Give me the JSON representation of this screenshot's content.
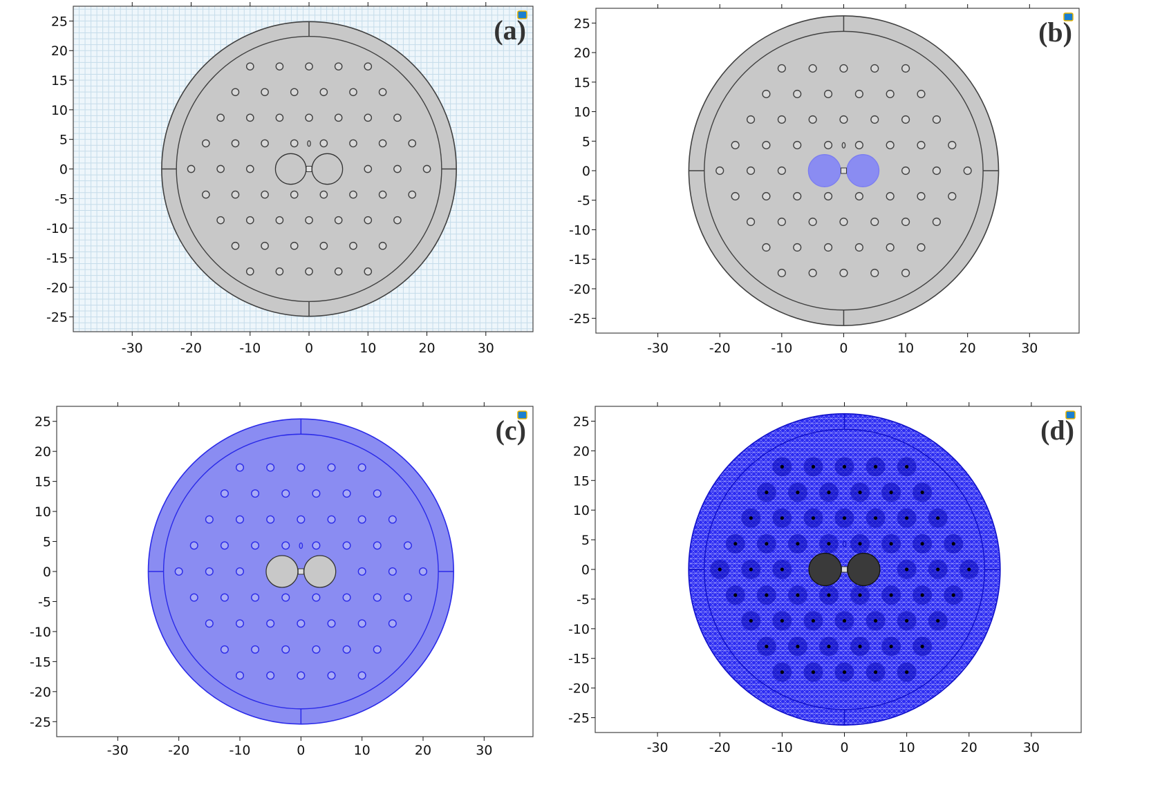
{
  "panels": [
    {
      "id": "a",
      "label": "(a)",
      "fill": "#c8c8c8",
      "edge": "#404040",
      "background": "#eef6fb",
      "grid": true,
      "core_fill": "none",
      "mesh": false
    },
    {
      "id": "b",
      "label": "(b)",
      "fill": "#c8c8c8",
      "edge": "#404040",
      "background": "#ffffff",
      "grid": false,
      "core_fill": "#8a8cf2",
      "mesh": false
    },
    {
      "id": "c",
      "label": "(c)",
      "fill": "#8a8cf2",
      "edge": "#2a2ae8",
      "background": "#ffffff",
      "grid": false,
      "core_fill": "#c8c8c8",
      "mesh": false
    },
    {
      "id": "d",
      "label": "(d)",
      "fill": "#2828f0",
      "edge": "#1010c8",
      "background": "#ffffff",
      "grid": false,
      "core_fill": "#3a3a3a",
      "mesh": true
    }
  ],
  "x_ticks": [
    "-30",
    "-20",
    "-10",
    "0",
    "10",
    "20",
    "30"
  ],
  "y_ticks": [
    "25",
    "20",
    "15",
    "10",
    "5",
    "0",
    "-5",
    "-10",
    "-15",
    "-20",
    "-25"
  ],
  "x_range": [
    -40,
    38
  ],
  "y_range": [
    -27.5,
    27.5
  ],
  "geometry": {
    "outer_radius": 25,
    "inner_radius": 22.5,
    "hole_radius": 0.6,
    "pitch": 5,
    "core_radius": 2.6,
    "core_offset": 3.1
  },
  "colors": {
    "axis": "#111111",
    "grid": "#c5dcea",
    "icon": "#1a7fd0"
  }
}
